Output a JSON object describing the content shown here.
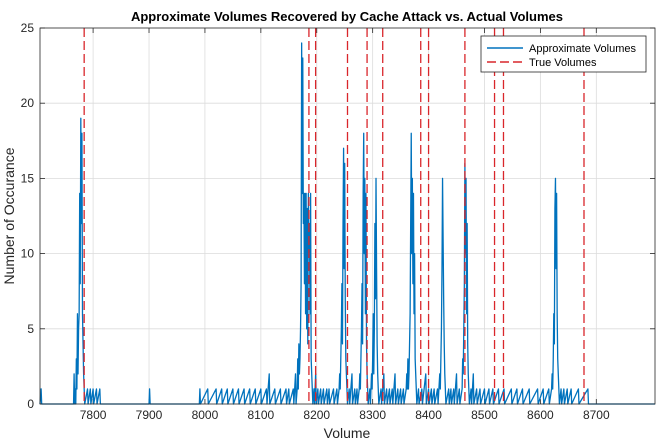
{
  "chart_data": {
    "type": "line",
    "title": "Approximate Volumes Recovered by Cache Attack vs. Actual Volumes",
    "xlabel": "Volume",
    "ylabel": "Number of Occurance",
    "xlim": [
      7705,
      8805
    ],
    "ylim": [
      0,
      25
    ],
    "xticks": [
      7800,
      7900,
      8000,
      8100,
      8200,
      8300,
      8400,
      8500,
      8600,
      8700
    ],
    "yticks": [
      0,
      5,
      10,
      15,
      20,
      25
    ],
    "grid": true,
    "legend_position": "top-right",
    "series": [
      {
        "name": "Approximate Volumes",
        "color": "#0072BD",
        "style": "solid",
        "points": [
          [
            7705,
            0
          ],
          [
            7707,
            1
          ],
          [
            7708,
            0
          ],
          [
            7765,
            0
          ],
          [
            7766,
            2
          ],
          [
            7767,
            0
          ],
          [
            7768,
            1
          ],
          [
            7769,
            0
          ],
          [
            7770,
            3
          ],
          [
            7771,
            1
          ],
          [
            7772,
            6
          ],
          [
            7773,
            2
          ],
          [
            7774,
            5
          ],
          [
            7775,
            6
          ],
          [
            7776,
            14
          ],
          [
            7777,
            8
          ],
          [
            7778,
            19
          ],
          [
            7779,
            12
          ],
          [
            7780,
            18
          ],
          [
            7781,
            6
          ],
          [
            7782,
            4
          ],
          [
            7783,
            2
          ],
          [
            7784,
            1
          ],
          [
            7785,
            0
          ],
          [
            7790,
            1
          ],
          [
            7791,
            0
          ],
          [
            7795,
            1
          ],
          [
            7796,
            0
          ],
          [
            7800,
            1
          ],
          [
            7801,
            0
          ],
          [
            7806,
            1
          ],
          [
            7807,
            0
          ],
          [
            7812,
            1
          ],
          [
            7813,
            0
          ],
          [
            7900,
            0
          ],
          [
            7901,
            1
          ],
          [
            7902,
            0
          ],
          [
            7990,
            0
          ],
          [
            7991,
            1
          ],
          [
            7992,
            0
          ],
          [
            8005,
            1
          ],
          [
            8006,
            0
          ],
          [
            8020,
            1
          ],
          [
            8021,
            0
          ],
          [
            8030,
            1
          ],
          [
            8031,
            0
          ],
          [
            8040,
            1
          ],
          [
            8041,
            0
          ],
          [
            8050,
            1
          ],
          [
            8051,
            0
          ],
          [
            8060,
            1
          ],
          [
            8061,
            0
          ],
          [
            8070,
            1
          ],
          [
            8071,
            0
          ],
          [
            8080,
            1
          ],
          [
            8081,
            0
          ],
          [
            8090,
            1
          ],
          [
            8091,
            0
          ],
          [
            8100,
            1
          ],
          [
            8101,
            0
          ],
          [
            8110,
            1
          ],
          [
            8111,
            0
          ],
          [
            8115,
            2
          ],
          [
            8116,
            0
          ],
          [
            8125,
            1
          ],
          [
            8126,
            0
          ],
          [
            8135,
            1
          ],
          [
            8136,
            0
          ],
          [
            8145,
            1
          ],
          [
            8146,
            0
          ],
          [
            8150,
            1
          ],
          [
            8151,
            0
          ],
          [
            8158,
            1
          ],
          [
            8159,
            0
          ],
          [
            8162,
            2
          ],
          [
            8163,
            0
          ],
          [
            8165,
            1
          ],
          [
            8166,
            3
          ],
          [
            8167,
            1
          ],
          [
            8168,
            4
          ],
          [
            8169,
            2
          ],
          [
            8170,
            3
          ],
          [
            8171,
            5
          ],
          [
            8172,
            8
          ],
          [
            8173,
            24
          ],
          [
            8174,
            14
          ],
          [
            8175,
            23
          ],
          [
            8176,
            12
          ],
          [
            8177,
            14
          ],
          [
            8178,
            8
          ],
          [
            8179,
            14
          ],
          [
            8180,
            6
          ],
          [
            8181,
            14
          ],
          [
            8182,
            5
          ],
          [
            8183,
            13
          ],
          [
            8184,
            4
          ],
          [
            8185,
            14
          ],
          [
            8186,
            10
          ],
          [
            8187,
            12
          ],
          [
            8188,
            6
          ],
          [
            8189,
            14
          ],
          [
            8190,
            3
          ],
          [
            8191,
            2
          ],
          [
            8192,
            1
          ],
          [
            8193,
            0
          ],
          [
            8195,
            1
          ],
          [
            8196,
            0
          ],
          [
            8198,
            2
          ],
          [
            8199,
            0
          ],
          [
            8202,
            1
          ],
          [
            8203,
            0
          ],
          [
            8207,
            1
          ],
          [
            8208,
            0
          ],
          [
            8212,
            1
          ],
          [
            8213,
            0
          ],
          [
            8218,
            1
          ],
          [
            8219,
            0
          ],
          [
            8222,
            1
          ],
          [
            8223,
            0
          ],
          [
            8230,
            1
          ],
          [
            8231,
            0
          ],
          [
            8236,
            1
          ],
          [
            8237,
            0
          ],
          [
            8240,
            1
          ],
          [
            8241,
            2
          ],
          [
            8242,
            1
          ],
          [
            8243,
            3
          ],
          [
            8244,
            5
          ],
          [
            8245,
            8
          ],
          [
            8246,
            4
          ],
          [
            8247,
            12
          ],
          [
            8248,
            17
          ],
          [
            8249,
            9
          ],
          [
            8250,
            16
          ],
          [
            8251,
            7
          ],
          [
            8252,
            3
          ],
          [
            8253,
            2
          ],
          [
            8254,
            1
          ],
          [
            8255,
            0
          ],
          [
            8258,
            1
          ],
          [
            8259,
            0
          ],
          [
            8263,
            2
          ],
          [
            8264,
            0
          ],
          [
            8268,
            1
          ],
          [
            8269,
            0
          ],
          [
            8272,
            1
          ],
          [
            8273,
            0
          ],
          [
            8276,
            1
          ],
          [
            8277,
            2
          ],
          [
            8278,
            1
          ],
          [
            8279,
            3
          ],
          [
            8280,
            5
          ],
          [
            8281,
            8
          ],
          [
            8282,
            4
          ],
          [
            8283,
            14
          ],
          [
            8284,
            18
          ],
          [
            8285,
            10
          ],
          [
            8286,
            15
          ],
          [
            8287,
            6
          ],
          [
            8288,
            14
          ],
          [
            8289,
            4
          ],
          [
            8290,
            2
          ],
          [
            8291,
            1
          ],
          [
            8292,
            0
          ],
          [
            8295,
            1
          ],
          [
            8296,
            0
          ],
          [
            8298,
            2
          ],
          [
            8299,
            1
          ],
          [
            8300,
            3
          ],
          [
            8301,
            6
          ],
          [
            8302,
            2
          ],
          [
            8303,
            5
          ],
          [
            8304,
            12
          ],
          [
            8305,
            7
          ],
          [
            8306,
            15
          ],
          [
            8307,
            9
          ],
          [
            8308,
            4
          ],
          [
            8309,
            2
          ],
          [
            8310,
            1
          ],
          [
            8311,
            0
          ],
          [
            8315,
            1
          ],
          [
            8316,
            0
          ],
          [
            8320,
            2
          ],
          [
            8321,
            0
          ],
          [
            8325,
            1
          ],
          [
            8326,
            0
          ],
          [
            8330,
            1
          ],
          [
            8331,
            0
          ],
          [
            8335,
            1
          ],
          [
            8336,
            0
          ],
          [
            8340,
            2
          ],
          [
            8341,
            0
          ],
          [
            8345,
            1
          ],
          [
            8346,
            0
          ],
          [
            8350,
            1
          ],
          [
            8351,
            0
          ],
          [
            8355,
            1
          ],
          [
            8356,
            0
          ],
          [
            8360,
            1
          ],
          [
            8361,
            2
          ],
          [
            8362,
            1
          ],
          [
            8363,
            3
          ],
          [
            8364,
            1
          ],
          [
            8365,
            2
          ],
          [
            8366,
            4
          ],
          [
            8367,
            6
          ],
          [
            8368,
            12
          ],
          [
            8369,
            18
          ],
          [
            8370,
            10
          ],
          [
            8371,
            15
          ],
          [
            8372,
            8
          ],
          [
            8373,
            14
          ],
          [
            8374,
            6
          ],
          [
            8375,
            10
          ],
          [
            8376,
            3
          ],
          [
            8377,
            2
          ],
          [
            8378,
            1
          ],
          [
            8379,
            0
          ],
          [
            8382,
            1
          ],
          [
            8383,
            0
          ],
          [
            8388,
            1
          ],
          [
            8389,
            0
          ],
          [
            8395,
            2
          ],
          [
            8396,
            0
          ],
          [
            8400,
            1
          ],
          [
            8401,
            0
          ],
          [
            8405,
            1
          ],
          [
            8406,
            0
          ],
          [
            8410,
            1
          ],
          [
            8411,
            0
          ],
          [
            8416,
            1
          ],
          [
            8417,
            0
          ],
          [
            8420,
            2
          ],
          [
            8421,
            1
          ],
          [
            8422,
            3
          ],
          [
            8423,
            5
          ],
          [
            8424,
            9
          ],
          [
            8425,
            15
          ],
          [
            8426,
            11
          ],
          [
            8427,
            7
          ],
          [
            8428,
            4
          ],
          [
            8429,
            2
          ],
          [
            8430,
            1
          ],
          [
            8431,
            0
          ],
          [
            8436,
            1
          ],
          [
            8437,
            0
          ],
          [
            8440,
            1
          ],
          [
            8441,
            0
          ],
          [
            8445,
            1
          ],
          [
            8446,
            0
          ],
          [
            8450,
            2
          ],
          [
            8451,
            0
          ],
          [
            8455,
            1
          ],
          [
            8456,
            0
          ],
          [
            8460,
            1
          ],
          [
            8461,
            3
          ],
          [
            8462,
            2
          ],
          [
            8463,
            5
          ],
          [
            8464,
            8
          ],
          [
            8465,
            16
          ],
          [
            8466,
            10
          ],
          [
            8467,
            15
          ],
          [
            8468,
            6
          ],
          [
            8469,
            12
          ],
          [
            8470,
            4
          ],
          [
            8471,
            2
          ],
          [
            8472,
            1
          ],
          [
            8473,
            0
          ],
          [
            8476,
            1
          ],
          [
            8477,
            0
          ],
          [
            8480,
            2
          ],
          [
            8481,
            0
          ],
          [
            8486,
            1
          ],
          [
            8487,
            0
          ],
          [
            8492,
            1
          ],
          [
            8493,
            0
          ],
          [
            8500,
            1
          ],
          [
            8501,
            0
          ],
          [
            8508,
            1
          ],
          [
            8509,
            0
          ],
          [
            8515,
            1
          ],
          [
            8516,
            0
          ],
          [
            8525,
            1
          ],
          [
            8526,
            0
          ],
          [
            8535,
            1
          ],
          [
            8536,
            0
          ],
          [
            8548,
            1
          ],
          [
            8549,
            0
          ],
          [
            8558,
            1
          ],
          [
            8559,
            0
          ],
          [
            8568,
            1
          ],
          [
            8569,
            0
          ],
          [
            8580,
            1
          ],
          [
            8581,
            0
          ],
          [
            8595,
            1
          ],
          [
            8596,
            0
          ],
          [
            8605,
            1
          ],
          [
            8606,
            0
          ],
          [
            8615,
            1
          ],
          [
            8616,
            0
          ],
          [
            8620,
            1
          ],
          [
            8621,
            2
          ],
          [
            8622,
            1
          ],
          [
            8623,
            3
          ],
          [
            8624,
            6
          ],
          [
            8625,
            4
          ],
          [
            8626,
            13
          ],
          [
            8627,
            15
          ],
          [
            8628,
            9
          ],
          [
            8629,
            14
          ],
          [
            8630,
            6
          ],
          [
            8631,
            3
          ],
          [
            8632,
            2
          ],
          [
            8633,
            1
          ],
          [
            8634,
            0
          ],
          [
            8637,
            1
          ],
          [
            8638,
            0
          ],
          [
            8642,
            1
          ],
          [
            8643,
            0
          ],
          [
            8648,
            1
          ],
          [
            8649,
            0
          ],
          [
            8655,
            1
          ],
          [
            8656,
            0
          ],
          [
            8668,
            1
          ],
          [
            8669,
            0
          ],
          [
            8685,
            1
          ],
          [
            8686,
            0
          ],
          [
            8805,
            0
          ]
        ]
      },
      {
        "name": "True Volumes",
        "color": "#D9262B",
        "style": "dashed",
        "x_values": [
          7784,
          8186,
          8198,
          8255,
          8290,
          8318,
          8386,
          8400,
          8465,
          8518,
          8534,
          8678
        ]
      }
    ]
  }
}
